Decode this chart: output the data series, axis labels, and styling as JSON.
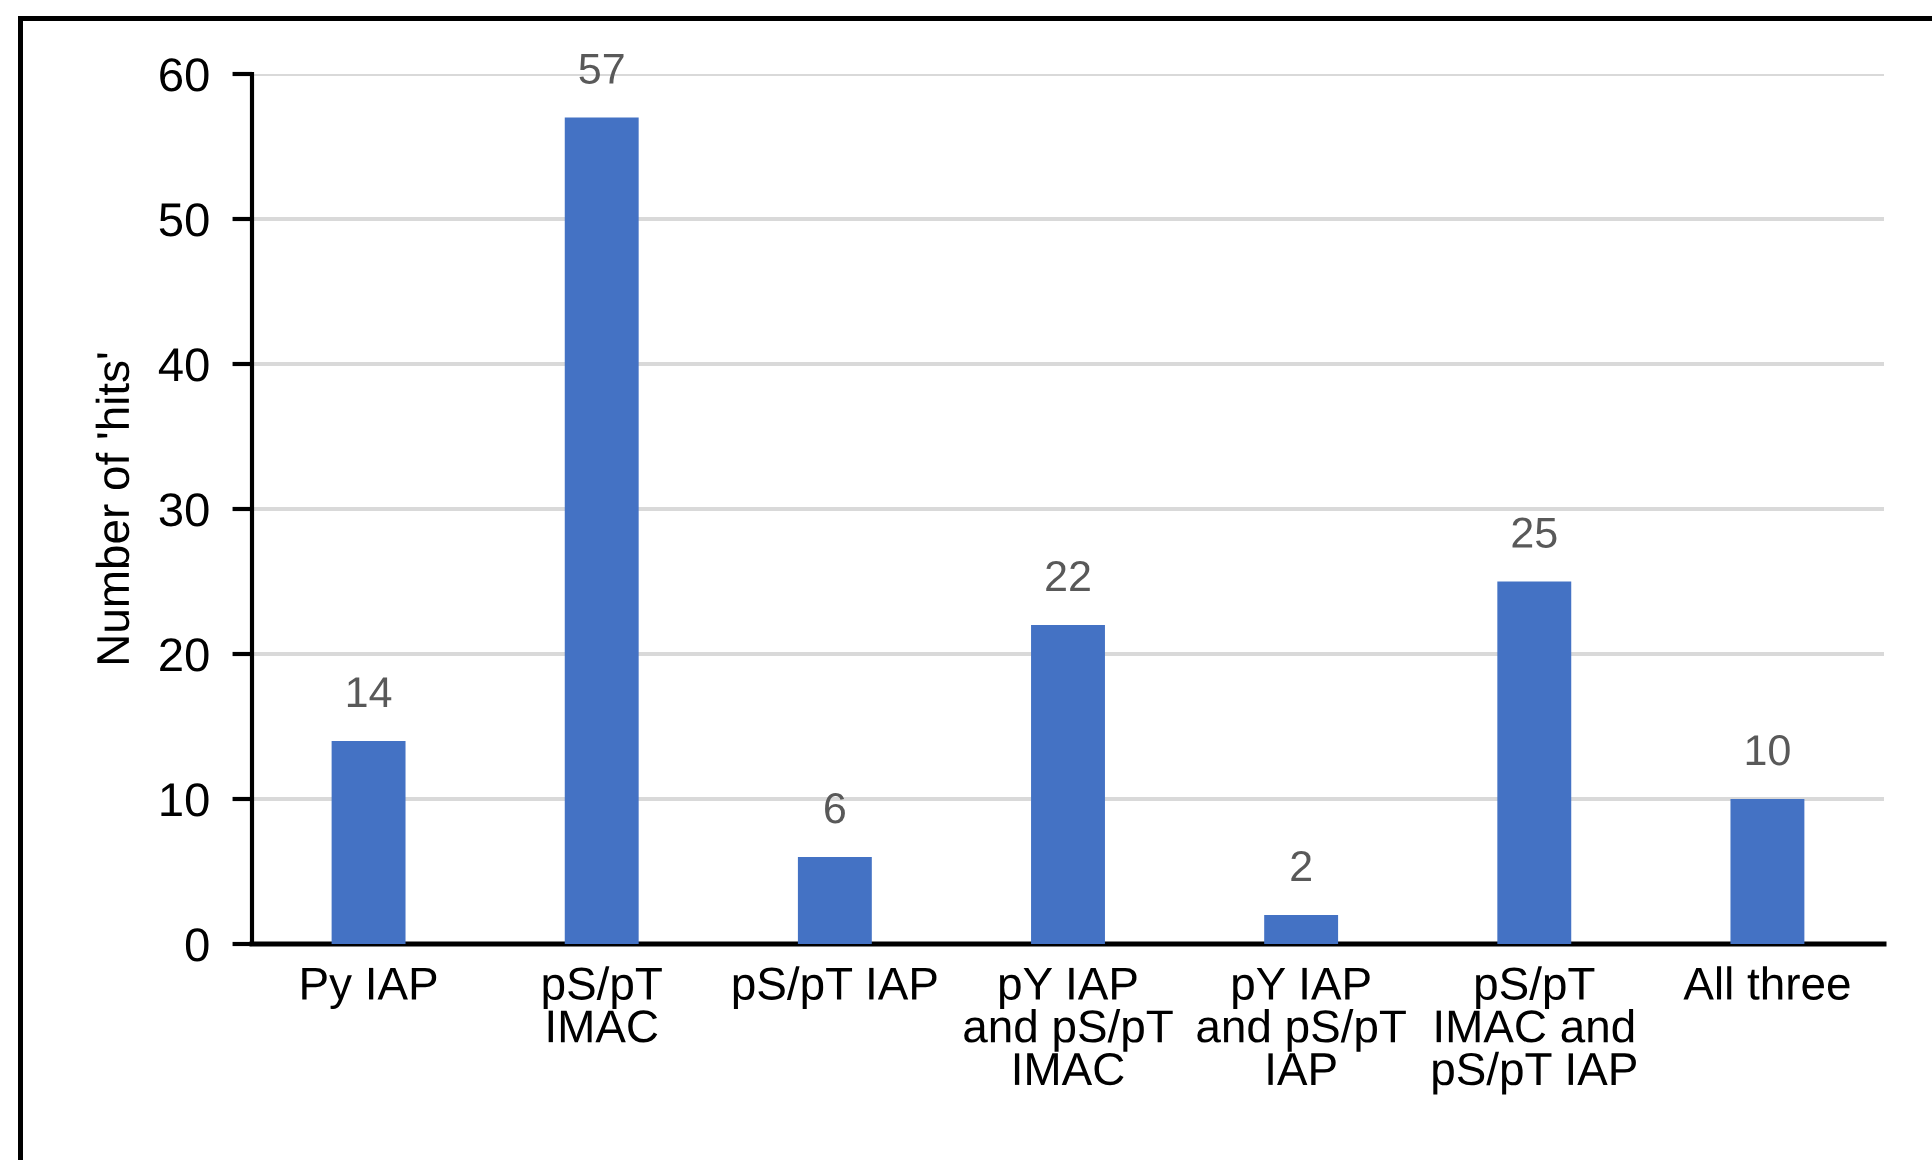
{
  "chart_data": {
    "type": "bar",
    "categories": [
      "Py IAP",
      "pS/pT\nIMAC",
      "pS/pT IAP",
      "pY IAP\nand pS/pT\nIMAC",
      "pY IAP\nand pS/pT\nIAP",
      "pS/pT\nIMAC and\npS/pT IAP",
      "All three"
    ],
    "values": [
      14,
      57,
      6,
      22,
      2,
      25,
      10
    ],
    "color": "#4472c4",
    "ylabel": "Number of 'hits'",
    "ylim": [
      0,
      60
    ],
    "yticks": [
      0,
      10,
      20,
      30,
      40,
      50,
      60
    ],
    "grid": "y",
    "data_labels": true,
    "legend": false
  }
}
